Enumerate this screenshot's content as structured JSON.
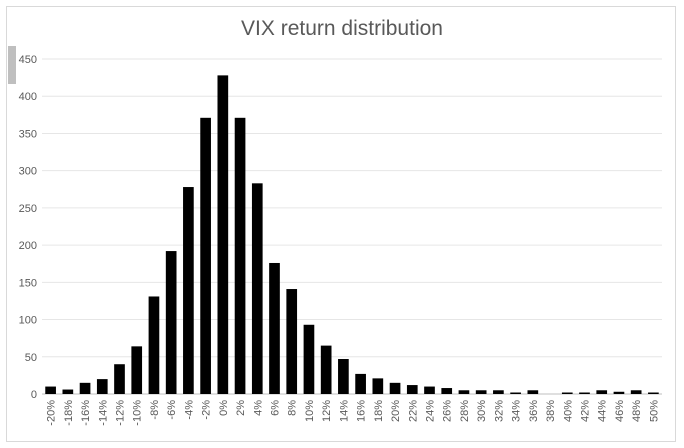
{
  "chart_data": {
    "type": "bar",
    "title": "VIX return distribution",
    "xlabel": "",
    "ylabel": "",
    "ylim": [
      0,
      450
    ],
    "yticks": [
      0,
      50,
      100,
      150,
      200,
      250,
      300,
      350,
      400,
      450
    ],
    "grid": true,
    "legend": "none",
    "categories": [
      "-20%",
      "-18%",
      "-16%",
      "-14%",
      "-12%",
      "-10%",
      "-8%",
      "-6%",
      "-4%",
      "-2%",
      "0%",
      "2%",
      "4%",
      "6%",
      "8%",
      "10%",
      "12%",
      "14%",
      "16%",
      "18%",
      "20%",
      "22%",
      "24%",
      "26%",
      "28%",
      "30%",
      "32%",
      "34%",
      "36%",
      "38%",
      "40%",
      "42%",
      "44%",
      "46%",
      "48%",
      "50%"
    ],
    "values": [
      10,
      6,
      15,
      20,
      40,
      64,
      131,
      192,
      278,
      371,
      428,
      371,
      283,
      176,
      141,
      93,
      65,
      47,
      27,
      21,
      15,
      12,
      10,
      8,
      5,
      5,
      5,
      2,
      5,
      0,
      2,
      2,
      5,
      3,
      5,
      2
    ],
    "colors": {
      "bar": "#000000",
      "grid": "#e6e6e6",
      "axis": "#bfbfbf",
      "text": "#595959"
    }
  }
}
